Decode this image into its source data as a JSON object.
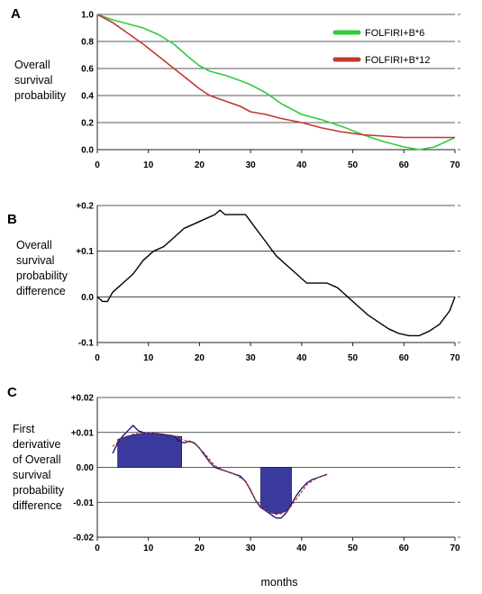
{
  "x_axis_label": "months",
  "chart_data": [
    {
      "panel": "A",
      "type": "line",
      "ylabel": [
        "Overall",
        "survival",
        "probability"
      ],
      "xlim": [
        0,
        70
      ],
      "ylim": [
        0,
        1
      ],
      "x_ticks": [
        0,
        10,
        20,
        30,
        40,
        50,
        60,
        70
      ],
      "y_ticks": [
        "1.0",
        "0.8",
        "0.6",
        "0.4",
        "0.2",
        "0.0"
      ],
      "y_tick_values": [
        1.0,
        0.8,
        0.6,
        0.4,
        0.2,
        0.0
      ],
      "legend_position": "top-right",
      "series": [
        {
          "name": "FOLFIRI+B*6",
          "color": "#2ecc40",
          "x": [
            0,
            3,
            6,
            9,
            12,
            15,
            18,
            20,
            22,
            25,
            28,
            30,
            33,
            36,
            40,
            44,
            48,
            52,
            56,
            60,
            63,
            66,
            70
          ],
          "y": [
            1.0,
            0.96,
            0.93,
            0.9,
            0.85,
            0.78,
            0.68,
            0.62,
            0.58,
            0.55,
            0.51,
            0.48,
            0.42,
            0.34,
            0.26,
            0.22,
            0.17,
            0.11,
            0.06,
            0.02,
            0.0,
            0.02,
            0.09
          ]
        },
        {
          "name": "FOLFIRI+B*12",
          "color": "#c0392b",
          "x": [
            0,
            3,
            6,
            9,
            12,
            15,
            18,
            20,
            22,
            25,
            28,
            30,
            33,
            36,
            40,
            44,
            48,
            52,
            56,
            60,
            64,
            70
          ],
          "y": [
            1.0,
            0.94,
            0.86,
            0.78,
            0.69,
            0.6,
            0.51,
            0.45,
            0.4,
            0.36,
            0.32,
            0.28,
            0.26,
            0.23,
            0.2,
            0.16,
            0.13,
            0.11,
            0.1,
            0.09,
            0.09,
            0.09
          ]
        }
      ]
    },
    {
      "panel": "B",
      "type": "line",
      "ylabel": [
        "Overall",
        "survival",
        "probability",
        "difference"
      ],
      "xlim": [
        0,
        70
      ],
      "ylim": [
        -0.1,
        0.2
      ],
      "x_ticks": [
        0,
        10,
        20,
        30,
        40,
        50,
        60,
        70
      ],
      "y_ticks": [
        "+0.2",
        "+0.1",
        "0.0",
        "-0.1"
      ],
      "y_tick_values": [
        0.2,
        0.1,
        0.0,
        -0.1
      ],
      "series": [
        {
          "name": "",
          "color": "#000000",
          "x": [
            0,
            1,
            2,
            3,
            4,
            5,
            7,
            9,
            11,
            13,
            15,
            17,
            19,
            21,
            23,
            24,
            25,
            27,
            29,
            31,
            33,
            35,
            37,
            39,
            41,
            43,
            45,
            47,
            49,
            51,
            53,
            55,
            57,
            59,
            61,
            63,
            65,
            67,
            69,
            70
          ],
          "y": [
            0.0,
            -0.01,
            -0.01,
            0.01,
            0.02,
            0.03,
            0.05,
            0.08,
            0.1,
            0.11,
            0.13,
            0.15,
            0.16,
            0.17,
            0.18,
            0.19,
            0.18,
            0.18,
            0.18,
            0.15,
            0.12,
            0.09,
            0.07,
            0.05,
            0.03,
            0.03,
            0.03,
            0.02,
            0.0,
            -0.02,
            -0.04,
            -0.055,
            -0.07,
            -0.08,
            -0.085,
            -0.085,
            -0.075,
            -0.06,
            -0.03,
            0.0
          ]
        }
      ]
    },
    {
      "panel": "C",
      "type": "bar+line",
      "ylabel": [
        "First",
        "derivative",
        "of Overall",
        "survival",
        "probability",
        "difference"
      ],
      "xlim": [
        0,
        70
      ],
      "ylim": [
        -0.02,
        0.02
      ],
      "x_ticks": [
        0,
        10,
        20,
        30,
        40,
        50,
        60,
        70
      ],
      "y_ticks": [
        "+0.02",
        "+0.01",
        "0.00",
        "-0.01",
        "-0.02"
      ],
      "y_tick_values": [
        0.02,
        0.01,
        0.0,
        -0.01,
        -0.02
      ],
      "bars": [
        {
          "x0": 4,
          "x1": 16.5,
          "color": "#3a3a9e",
          "x": [
            4,
            6,
            8,
            10,
            12,
            14,
            16.5
          ],
          "y": [
            0.008,
            0.009,
            0.0095,
            0.0098,
            0.0095,
            0.009,
            0.0088
          ]
        },
        {
          "x0": 32,
          "x1": 38,
          "color": "#3a3a9e",
          "x": [
            32,
            33,
            34,
            35,
            36,
            37,
            38
          ],
          "y": [
            -0.011,
            -0.0125,
            -0.013,
            -0.0133,
            -0.013,
            -0.0125,
            -0.011
          ]
        }
      ],
      "series": [
        {
          "name": "",
          "color": "#1a1a7a",
          "x": [
            3,
            4,
            5,
            6,
            7,
            8,
            9,
            10,
            11,
            12,
            13,
            14,
            15,
            16,
            17,
            18,
            19,
            20,
            21,
            22,
            23,
            24,
            25,
            26,
            27,
            28,
            29,
            30,
            31,
            32,
            33,
            34,
            35,
            36,
            37,
            38,
            39,
            40,
            41,
            42,
            43,
            44,
            45
          ],
          "y": [
            0.004,
            0.007,
            0.009,
            0.0105,
            0.012,
            0.0105,
            0.01,
            0.0098,
            0.0098,
            0.0096,
            0.0094,
            0.0092,
            0.009,
            0.0075,
            0.007,
            0.0075,
            0.007,
            0.0055,
            0.0035,
            0.0015,
            0.0,
            -0.0005,
            -0.001,
            -0.0015,
            -0.002,
            -0.0025,
            -0.004,
            -0.0065,
            -0.0095,
            -0.0115,
            -0.0125,
            -0.0135,
            -0.0145,
            -0.0145,
            -0.013,
            -0.0105,
            -0.008,
            -0.006,
            -0.0045,
            -0.0035,
            -0.003,
            -0.0025,
            -0.002
          ]
        },
        {
          "name": "",
          "color": "#c0392b",
          "x": [
            3,
            5,
            7,
            9,
            11,
            13,
            15,
            17,
            19,
            21,
            23,
            25,
            27,
            29,
            31,
            33,
            35,
            37,
            39,
            41,
            43,
            45
          ],
          "y": [
            0.006,
            0.0085,
            0.0095,
            0.0098,
            0.0098,
            0.0095,
            0.009,
            0.0078,
            0.0068,
            0.004,
            0.0005,
            -0.001,
            -0.002,
            -0.004,
            -0.0095,
            -0.0125,
            -0.0135,
            -0.013,
            -0.009,
            -0.005,
            -0.003,
            -0.002
          ]
        }
      ]
    }
  ]
}
